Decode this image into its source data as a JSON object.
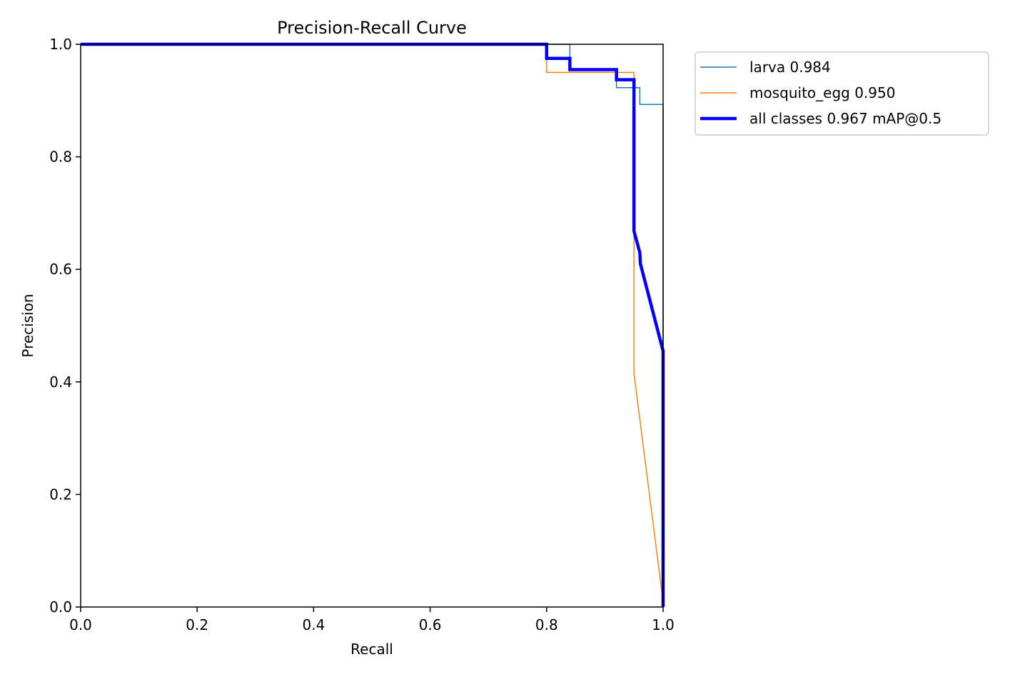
{
  "chart_data": {
    "type": "line",
    "title": "Precision-Recall Curve",
    "xlabel": "Recall",
    "ylabel": "Precision",
    "xlim": [
      0.0,
      1.0
    ],
    "ylim": [
      0.0,
      1.0
    ],
    "xticks": [
      "0.0",
      "0.2",
      "0.4",
      "0.6",
      "0.8",
      "1.0"
    ],
    "yticks": [
      "0.0",
      "0.2",
      "0.4",
      "0.6",
      "0.8",
      "1.0"
    ],
    "grid": false,
    "legend_position": "outside-top-right",
    "series": [
      {
        "name": "larva 0.984",
        "color": "#1f77b4",
        "line_width": "thin",
        "points": [
          [
            0,
            1.0
          ],
          [
            0.84,
            1.0
          ],
          [
            0.84,
            0.955
          ],
          [
            0.92,
            0.955
          ],
          [
            0.92,
            0.923
          ],
          [
            0.96,
            0.923
          ],
          [
            0.96,
            0.893
          ],
          [
            1.0,
            0.893
          ],
          [
            1.0,
            0.0
          ]
        ]
      },
      {
        "name": "mosquito_egg 0.950",
        "color": "#ff7f0e",
        "line_width": "thin",
        "points": [
          [
            0,
            1.0
          ],
          [
            0.8,
            1.0
          ],
          [
            0.8,
            0.95
          ],
          [
            0.95,
            0.95
          ],
          [
            0.95,
            0.415
          ],
          [
            1.0,
            0.01
          ]
        ]
      },
      {
        "name": "all classes 0.967 mAP@0.5",
        "color": "#0000ff",
        "line_width": "thick",
        "points": [
          [
            0,
            1.0
          ],
          [
            0.8,
            1.0
          ],
          [
            0.8,
            0.975
          ],
          [
            0.84,
            0.975
          ],
          [
            0.84,
            0.955
          ],
          [
            0.92,
            0.955
          ],
          [
            0.92,
            0.937
          ],
          [
            0.95,
            0.937
          ],
          [
            0.95,
            0.668
          ],
          [
            0.96,
            0.63
          ],
          [
            0.961,
            0.61
          ],
          [
            1.0,
            0.455
          ],
          [
            1.0,
            0.0
          ]
        ]
      }
    ]
  }
}
